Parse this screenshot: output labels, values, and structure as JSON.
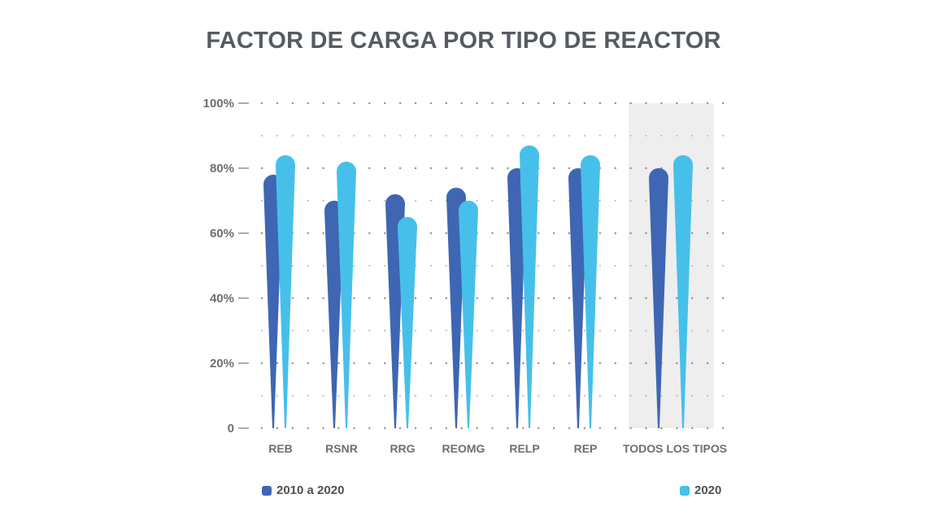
{
  "chart_data": {
    "type": "bar",
    "title": "FACTOR DE CARGA POR TIPO DE REACTOR",
    "categories": [
      "REB",
      "RSNR",
      "RRG",
      "REOMG",
      "RELP",
      "REP",
      "TODOS LOS TIPOS"
    ],
    "series": [
      {
        "name": "2010 a 2020",
        "color": "#3f66b3",
        "values": [
          78,
          70,
          72,
          74,
          80,
          80,
          80
        ]
      },
      {
        "name": "2020",
        "color": "#46c0ea",
        "values": [
          84,
          82,
          65,
          70,
          87,
          84,
          84
        ]
      }
    ],
    "y_ticks": [
      {
        "value": 0,
        "label": "0"
      },
      {
        "value": 20,
        "label": "20%"
      },
      {
        "value": 40,
        "label": "40%"
      },
      {
        "value": 60,
        "label": "60%"
      },
      {
        "value": 80,
        "label": "80%"
      },
      {
        "value": 100,
        "label": "100%"
      }
    ],
    "ylim": [
      0,
      100
    ],
    "grid": true,
    "highlighted_category": "TODOS LOS TIPOS",
    "legend_position": "bottom"
  }
}
